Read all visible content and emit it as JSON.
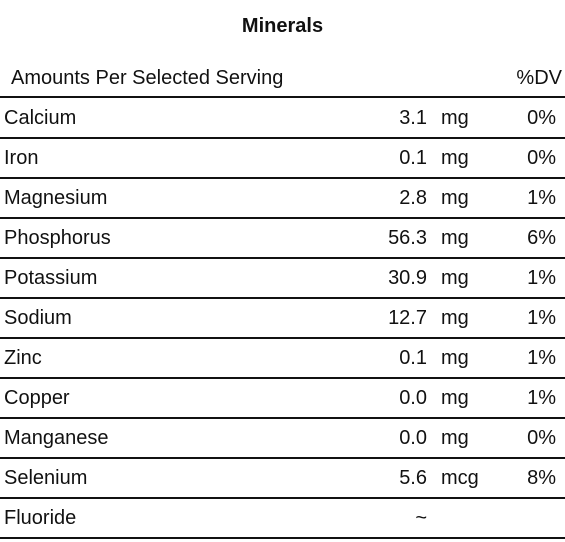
{
  "title": "Minerals",
  "header": {
    "label": "Amounts Per Selected Serving",
    "dv": "%DV"
  },
  "rows": [
    {
      "name": "Calcium",
      "amount": "3.1",
      "unit": "mg",
      "dv": "0%"
    },
    {
      "name": "Iron",
      "amount": "0.1",
      "unit": "mg",
      "dv": "0%"
    },
    {
      "name": "Magnesium",
      "amount": "2.8",
      "unit": "mg",
      "dv": "1%"
    },
    {
      "name": "Phosphorus",
      "amount": "56.3",
      "unit": "mg",
      "dv": "6%"
    },
    {
      "name": "Potassium",
      "amount": "30.9",
      "unit": "mg",
      "dv": "1%"
    },
    {
      "name": "Sodium",
      "amount": "12.7",
      "unit": "mg",
      "dv": "1%"
    },
    {
      "name": "Zinc",
      "amount": "0.1",
      "unit": "mg",
      "dv": "1%"
    },
    {
      "name": "Copper",
      "amount": "0.0",
      "unit": "mg",
      "dv": "1%"
    },
    {
      "name": "Manganese",
      "amount": "0.0",
      "unit": "mg",
      "dv": "0%"
    },
    {
      "name": "Selenium",
      "amount": "5.6",
      "unit": "mcg",
      "dv": "8%"
    },
    {
      "name": "Fluoride",
      "amount": "~",
      "unit": "",
      "dv": ""
    }
  ]
}
